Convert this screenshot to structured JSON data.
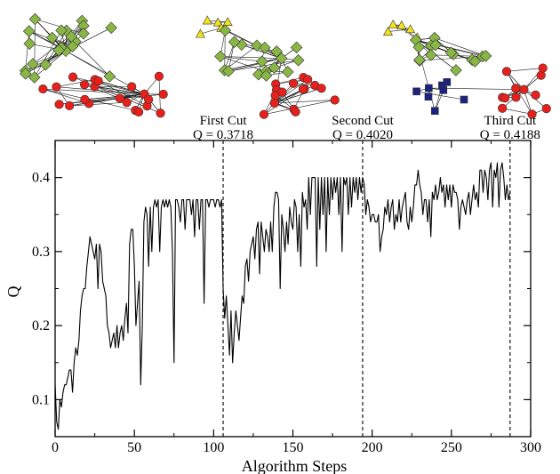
{
  "chart_data": {
    "type": "line",
    "xlabel": "Algorithm Steps",
    "ylabel": "Q",
    "xlim": [
      0,
      300
    ],
    "ylim": [
      0.05,
      0.45
    ],
    "xticks": [
      0,
      50,
      100,
      150,
      200,
      250,
      300
    ],
    "yticks": [
      0.1,
      0.2,
      0.3,
      0.4
    ],
    "grid": false,
    "series": [
      {
        "values": [
          [
            0,
            0.12
          ],
          [
            1,
            0.07
          ],
          [
            2,
            0.06
          ],
          [
            3,
            0.1
          ],
          [
            4,
            0.09
          ],
          [
            5,
            0.11
          ],
          [
            6,
            0.12
          ],
          [
            7,
            0.12
          ],
          [
            8,
            0.13
          ],
          [
            9,
            0.14
          ],
          [
            10,
            0.14
          ],
          [
            11,
            0.11
          ],
          [
            12,
            0.15
          ],
          [
            13,
            0.17
          ],
          [
            14,
            0.16
          ],
          [
            15,
            0.18
          ],
          [
            16,
            0.22
          ],
          [
            17,
            0.24
          ],
          [
            18,
            0.25
          ],
          [
            19,
            0.25
          ],
          [
            20,
            0.28
          ],
          [
            21,
            0.3
          ],
          [
            22,
            0.32
          ],
          [
            23,
            0.31
          ],
          [
            24,
            0.3
          ],
          [
            25,
            0.29
          ],
          [
            26,
            0.31
          ],
          [
            27,
            0.25
          ],
          [
            28,
            0.31
          ],
          [
            29,
            0.3
          ],
          [
            30,
            0.26
          ],
          [
            31,
            0.25
          ],
          [
            32,
            0.24
          ],
          [
            33,
            0.2
          ],
          [
            34,
            0.19
          ],
          [
            35,
            0.17
          ],
          [
            36,
            0.18
          ],
          [
            37,
            0.19
          ],
          [
            38,
            0.17
          ],
          [
            39,
            0.2
          ],
          [
            40,
            0.17
          ],
          [
            41,
            0.19
          ],
          [
            42,
            0.2
          ],
          [
            43,
            0.18
          ],
          [
            44,
            0.21
          ],
          [
            45,
            0.23
          ],
          [
            46,
            0.19
          ],
          [
            47,
            0.31
          ],
          [
            48,
            0.33
          ],
          [
            49,
            0.33
          ],
          [
            50,
            0.28
          ],
          [
            51,
            0.2
          ],
          [
            52,
            0.23
          ],
          [
            53,
            0.26
          ],
          [
            54,
            0.12
          ],
          [
            55,
            0.2
          ],
          [
            56,
            0.34
          ],
          [
            57,
            0.36
          ],
          [
            58,
            0.35
          ],
          [
            59,
            0.28
          ],
          [
            60,
            0.36
          ],
          [
            61,
            0.3
          ],
          [
            62,
            0.36
          ],
          [
            63,
            0.37
          ],
          [
            64,
            0.36
          ],
          [
            65,
            0.37
          ],
          [
            66,
            0.3
          ],
          [
            67,
            0.36
          ],
          [
            68,
            0.37
          ],
          [
            69,
            0.36
          ],
          [
            70,
            0.37
          ],
          [
            71,
            0.36
          ],
          [
            72,
            0.37
          ],
          [
            73,
            0.36
          ],
          [
            74,
            0.3
          ],
          [
            75,
            0.15
          ],
          [
            76,
            0.37
          ],
          [
            77,
            0.37
          ],
          [
            78,
            0.36
          ],
          [
            79,
            0.34
          ],
          [
            80,
            0.37
          ],
          [
            81,
            0.37
          ],
          [
            82,
            0.33
          ],
          [
            83,
            0.37
          ],
          [
            84,
            0.37
          ],
          [
            85,
            0.37
          ],
          [
            86,
            0.35
          ],
          [
            87,
            0.37
          ],
          [
            88,
            0.32
          ],
          [
            89,
            0.37
          ],
          [
            90,
            0.37
          ],
          [
            91,
            0.33
          ],
          [
            92,
            0.37
          ],
          [
            93,
            0.37
          ],
          [
            94,
            0.23
          ],
          [
            95,
            0.37
          ],
          [
            96,
            0.37
          ],
          [
            97,
            0.36
          ],
          [
            98,
            0.37
          ],
          [
            99,
            0.37
          ],
          [
            100,
            0.37
          ],
          [
            101,
            0.36
          ],
          [
            102,
            0.37
          ],
          [
            103,
            0.37
          ],
          [
            104,
            0.36
          ],
          [
            105,
            0.37
          ],
          [
            106,
            0.25
          ],
          [
            107,
            0.21
          ],
          [
            108,
            0.24
          ],
          [
            109,
            0.2
          ],
          [
            110,
            0.16
          ],
          [
            111,
            0.22
          ],
          [
            112,
            0.15
          ],
          [
            113,
            0.19
          ],
          [
            114,
            0.22
          ],
          [
            115,
            0.2
          ],
          [
            116,
            0.18
          ],
          [
            117,
            0.21
          ],
          [
            118,
            0.24
          ],
          [
            119,
            0.23
          ],
          [
            120,
            0.28
          ],
          [
            121,
            0.29
          ],
          [
            122,
            0.26
          ],
          [
            123,
            0.3
          ],
          [
            124,
            0.31
          ],
          [
            125,
            0.32
          ],
          [
            126,
            0.29
          ],
          [
            127,
            0.33
          ],
          [
            128,
            0.34
          ],
          [
            129,
            0.27
          ],
          [
            130,
            0.34
          ],
          [
            131,
            0.32
          ],
          [
            132,
            0.3
          ],
          [
            133,
            0.33
          ],
          [
            134,
            0.32
          ],
          [
            135,
            0.3
          ],
          [
            136,
            0.34
          ],
          [
            137,
            0.3
          ],
          [
            138,
            0.36
          ],
          [
            139,
            0.38
          ],
          [
            140,
            0.38
          ],
          [
            141,
            0.37
          ],
          [
            142,
            0.25
          ],
          [
            143,
            0.35
          ],
          [
            144,
            0.33
          ],
          [
            145,
            0.3
          ],
          [
            146,
            0.34
          ],
          [
            147,
            0.31
          ],
          [
            148,
            0.36
          ],
          [
            149,
            0.34
          ],
          [
            150,
            0.33
          ],
          [
            151,
            0.37
          ],
          [
            152,
            0.36
          ],
          [
            153,
            0.3
          ],
          [
            154,
            0.35
          ],
          [
            155,
            0.28
          ],
          [
            156,
            0.38
          ],
          [
            157,
            0.36
          ],
          [
            158,
            0.37
          ],
          [
            159,
            0.33
          ],
          [
            160,
            0.4
          ],
          [
            161,
            0.35
          ],
          [
            162,
            0.4
          ],
          [
            163,
            0.4
          ],
          [
            164,
            0.4
          ],
          [
            165,
            0.28
          ],
          [
            166,
            0.4
          ],
          [
            167,
            0.33
          ],
          [
            168,
            0.4
          ],
          [
            169,
            0.35
          ],
          [
            170,
            0.4
          ],
          [
            171,
            0.3
          ],
          [
            172,
            0.4
          ],
          [
            173,
            0.35
          ],
          [
            174,
            0.4
          ],
          [
            175,
            0.37
          ],
          [
            176,
            0.4
          ],
          [
            177,
            0.38
          ],
          [
            178,
            0.4
          ],
          [
            179,
            0.35
          ],
          [
            180,
            0.4
          ],
          [
            181,
            0.3
          ],
          [
            182,
            0.4
          ],
          [
            183,
            0.39
          ],
          [
            184,
            0.4
          ],
          [
            185,
            0.35
          ],
          [
            186,
            0.4
          ],
          [
            187,
            0.36
          ],
          [
            188,
            0.4
          ],
          [
            189,
            0.38
          ],
          [
            190,
            0.4
          ],
          [
            191,
            0.37
          ],
          [
            192,
            0.4
          ],
          [
            193,
            0.38
          ],
          [
            194,
            0.4
          ],
          [
            195,
            0.39
          ],
          [
            196,
            0.35
          ],
          [
            197,
            0.37
          ],
          [
            198,
            0.36
          ],
          [
            199,
            0.34
          ],
          [
            200,
            0.35
          ],
          [
            201,
            0.35
          ],
          [
            202,
            0.34
          ],
          [
            203,
            0.34
          ],
          [
            204,
            0.35
          ],
          [
            205,
            0.3
          ],
          [
            206,
            0.32
          ],
          [
            207,
            0.33
          ],
          [
            208,
            0.36
          ],
          [
            209,
            0.35
          ],
          [
            210,
            0.37
          ],
          [
            211,
            0.34
          ],
          [
            212,
            0.36
          ],
          [
            213,
            0.37
          ],
          [
            214,
            0.33
          ],
          [
            215,
            0.35
          ],
          [
            216,
            0.34
          ],
          [
            217,
            0.37
          ],
          [
            218,
            0.34
          ],
          [
            219,
            0.36
          ],
          [
            220,
            0.37
          ],
          [
            221,
            0.38
          ],
          [
            222,
            0.34
          ],
          [
            223,
            0.33
          ],
          [
            224,
            0.36
          ],
          [
            225,
            0.34
          ],
          [
            226,
            0.36
          ],
          [
            227,
            0.39
          ],
          [
            228,
            0.39
          ],
          [
            229,
            0.41
          ],
          [
            230,
            0.39
          ],
          [
            231,
            0.38
          ],
          [
            232,
            0.35
          ],
          [
            233,
            0.37
          ],
          [
            234,
            0.37
          ],
          [
            235,
            0.34
          ],
          [
            236,
            0.37
          ],
          [
            237,
            0.32
          ],
          [
            238,
            0.38
          ],
          [
            239,
            0.37
          ],
          [
            240,
            0.39
          ],
          [
            241,
            0.37
          ],
          [
            242,
            0.38
          ],
          [
            243,
            0.4
          ],
          [
            244,
            0.38
          ],
          [
            245,
            0.39
          ],
          [
            246,
            0.36
          ],
          [
            247,
            0.39
          ],
          [
            248,
            0.37
          ],
          [
            249,
            0.39
          ],
          [
            250,
            0.36
          ],
          [
            251,
            0.39
          ],
          [
            252,
            0.38
          ],
          [
            253,
            0.38
          ],
          [
            254,
            0.37
          ],
          [
            255,
            0.33
          ],
          [
            256,
            0.36
          ],
          [
            257,
            0.37
          ],
          [
            258,
            0.36
          ],
          [
            259,
            0.35
          ],
          [
            260,
            0.37
          ],
          [
            261,
            0.38
          ],
          [
            262,
            0.35
          ],
          [
            263,
            0.37
          ],
          [
            264,
            0.39
          ],
          [
            265,
            0.37
          ],
          [
            266,
            0.38
          ],
          [
            267,
            0.36
          ],
          [
            268,
            0.41
          ],
          [
            269,
            0.41
          ],
          [
            270,
            0.38
          ],
          [
            271,
            0.41
          ],
          [
            272,
            0.4
          ],
          [
            273,
            0.37
          ],
          [
            274,
            0.41
          ],
          [
            275,
            0.42
          ],
          [
            276,
            0.36
          ],
          [
            277,
            0.41
          ],
          [
            278,
            0.4
          ],
          [
            279,
            0.42
          ],
          [
            280,
            0.36
          ],
          [
            281,
            0.41
          ],
          [
            282,
            0.42
          ],
          [
            283,
            0.4
          ],
          [
            284,
            0.37
          ],
          [
            285,
            0.39
          ],
          [
            286,
            0.37
          ],
          [
            287,
            0.38
          ]
        ]
      }
    ],
    "annotations": [
      {
        "x": 106,
        "line1": "First Cut",
        "line2": "Q = 0.3718"
      },
      {
        "x": 194,
        "line1": "Second Cut",
        "line2": "Q = 0.4020"
      },
      {
        "x": 287,
        "line1": "Third Cut",
        "line2": "Q = 0.4188"
      }
    ]
  },
  "colors": {
    "green": "#8ab646",
    "red": "#e8201c",
    "yellow": "#f2e21a",
    "blue": "#1c237e",
    "line": "#000000"
  },
  "network_thumbnails": [
    {
      "name": "network-two-communities",
      "communities": [
        "green",
        "red"
      ]
    },
    {
      "name": "network-three-communities",
      "communities": [
        "yellow",
        "green",
        "red"
      ]
    },
    {
      "name": "network-four-communities",
      "communities": [
        "yellow",
        "green",
        "blue",
        "red"
      ]
    }
  ]
}
